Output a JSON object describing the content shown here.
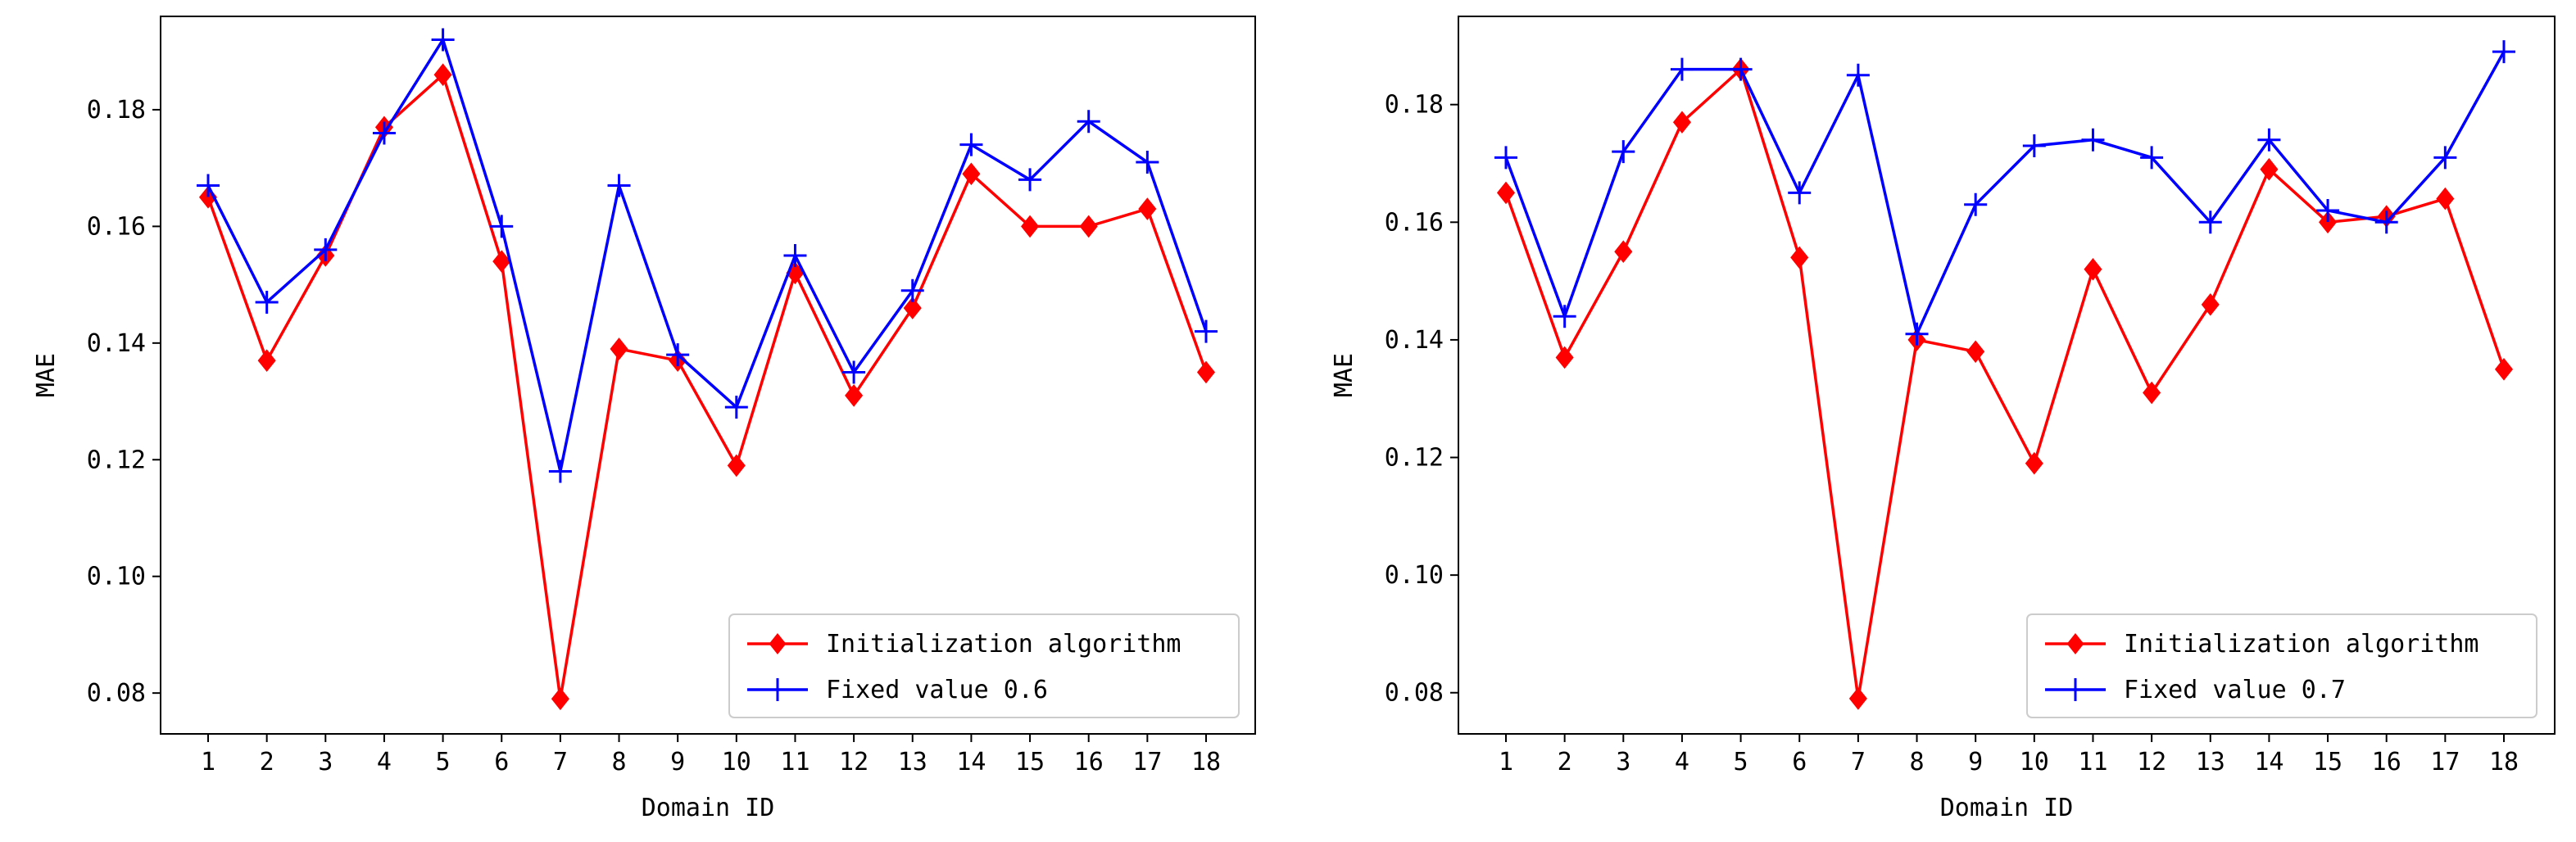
{
  "colors": {
    "initialization": "#ff0000",
    "fixed": "#0000ff",
    "axes": "#000000"
  },
  "chart_data": [
    {
      "type": "line",
      "x": [
        1,
        2,
        3,
        4,
        5,
        6,
        7,
        8,
        9,
        10,
        11,
        12,
        13,
        14,
        15,
        16,
        17,
        18
      ],
      "xlabel": "Domain ID",
      "ylabel": "MAE",
      "ylim": [
        0.073,
        0.196
      ],
      "yticks": [
        "0.08",
        "0.10",
        "0.12",
        "0.14",
        "0.16",
        "0.18"
      ],
      "legend_position": "lower-right",
      "grid": false,
      "series": [
        {
          "name": "Initialization algorithm",
          "color": "#ff0000",
          "marker": "diamond",
          "values": [
            0.165,
            0.137,
            0.155,
            0.177,
            0.186,
            0.154,
            0.079,
            0.139,
            0.137,
            0.119,
            0.152,
            0.131,
            0.146,
            0.169,
            0.16,
            0.16,
            0.163,
            0.135
          ]
        },
        {
          "name": "Fixed value 0.6",
          "color": "#0000ff",
          "marker": "plus",
          "values": [
            0.167,
            0.147,
            0.156,
            0.176,
            0.192,
            0.16,
            0.118,
            0.167,
            0.138,
            0.129,
            0.155,
            0.135,
            0.149,
            0.174,
            0.168,
            0.178,
            0.171,
            0.142
          ]
        }
      ]
    },
    {
      "type": "line",
      "x": [
        1,
        2,
        3,
        4,
        5,
        6,
        7,
        8,
        9,
        10,
        11,
        12,
        13,
        14,
        15,
        16,
        17,
        18
      ],
      "xlabel": "Domain ID",
      "ylabel": "MAE",
      "ylim": [
        0.073,
        0.195
      ],
      "yticks": [
        "0.08",
        "0.10",
        "0.12",
        "0.14",
        "0.16",
        "0.18"
      ],
      "legend_position": "lower-right",
      "grid": false,
      "series": [
        {
          "name": "Initialization algorithm",
          "color": "#ff0000",
          "marker": "diamond",
          "values": [
            0.165,
            0.137,
            0.155,
            0.177,
            0.186,
            0.154,
            0.079,
            0.14,
            0.138,
            0.119,
            0.152,
            0.131,
            0.146,
            0.169,
            0.16,
            0.161,
            0.164,
            0.135
          ]
        },
        {
          "name": "Fixed value 0.7",
          "color": "#0000ff",
          "marker": "plus",
          "values": [
            0.171,
            0.144,
            0.172,
            0.186,
            0.186,
            0.165,
            0.185,
            0.141,
            0.163,
            0.173,
            0.174,
            0.171,
            0.16,
            0.174,
            0.162,
            0.16,
            0.171,
            0.189
          ]
        }
      ]
    }
  ]
}
